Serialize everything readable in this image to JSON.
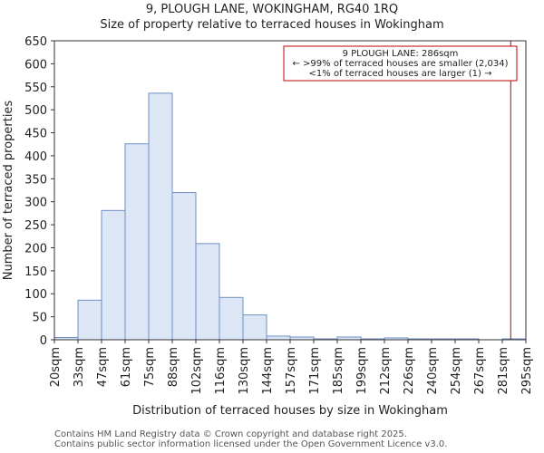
{
  "header": {
    "title": "9, PLOUGH LANE, WOKINGHAM, RG40 1RQ",
    "subtitle": "Size of property relative to terraced houses in Wokingham"
  },
  "chart_data": {
    "type": "bar",
    "title": "9, PLOUGH LANE, WOKINGHAM, RG40 1RQ",
    "subtitle": "Size of property relative to terraced houses in Wokingham",
    "xlabel": "Distribution of terraced houses by size in Wokingham",
    "ylabel": "Number of terraced properties",
    "ylim": [
      0,
      650
    ],
    "yticks": [
      0,
      50,
      100,
      150,
      200,
      250,
      300,
      350,
      400,
      450,
      500,
      550,
      600,
      650
    ],
    "x_tick_labels": [
      "20sqm",
      "33sqm",
      "47sqm",
      "61sqm",
      "75sqm",
      "88sqm",
      "102sqm",
      "116sqm",
      "130sqm",
      "144sqm",
      "157sqm",
      "171sqm",
      "185sqm",
      "199sqm",
      "212sqm",
      "226sqm",
      "240sqm",
      "254sqm",
      "267sqm",
      "281sqm",
      "295sqm"
    ],
    "bin_edges": [
      20,
      33,
      47,
      61,
      75,
      88,
      102,
      116,
      130,
      144,
      157,
      171,
      185,
      199,
      212,
      226,
      240,
      254,
      267,
      281,
      295
    ],
    "values": [
      5,
      86,
      281,
      426,
      536,
      320,
      209,
      92,
      54,
      8,
      6,
      2,
      6,
      2,
      4,
      2,
      2,
      2,
      0,
      2
    ],
    "bar_color": "#dce6f5",
    "bar_edge_color": "#6f8fc4",
    "marker": {
      "value": 286,
      "color": "#c00000"
    },
    "annotation": {
      "lines": [
        "9 PLOUGH LANE: 286sqm",
        "← >99% of terraced houses are smaller (2,034)",
        "<1% of terraced houses are larger (1) →"
      ],
      "border_color": "#c00000"
    }
  },
  "footer": {
    "line1": "Contains HM Land Registry data © Crown copyright and database right 2025.",
    "line2": "Contains public sector information licensed under the Open Government Licence v3.0."
  }
}
